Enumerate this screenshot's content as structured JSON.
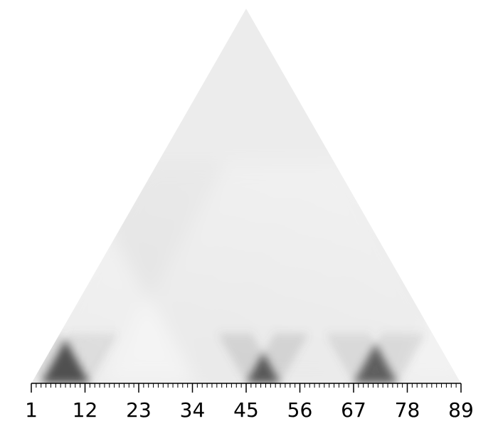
{
  "chart_data": {
    "type": "heatmap",
    "shape": "triangle",
    "colormap": "gray_r",
    "grid": false,
    "xlim": [
      1,
      89
    ],
    "ticks": [
      "1",
      "12",
      "23",
      "34",
      "45",
      "56",
      "67",
      "78",
      "89"
    ],
    "tick_values": [
      1,
      12,
      23,
      34,
      45,
      56,
      67,
      78,
      89
    ],
    "minor_tick_step": 1,
    "dark_regions": [
      {
        "x_from": 3,
        "x_to": 13,
        "intensity": 1.0
      },
      {
        "x_from": 45,
        "x_to": 52,
        "intensity": 0.95
      },
      {
        "x_from": 67,
        "x_to": 76,
        "intensity": 0.85
      }
    ]
  }
}
